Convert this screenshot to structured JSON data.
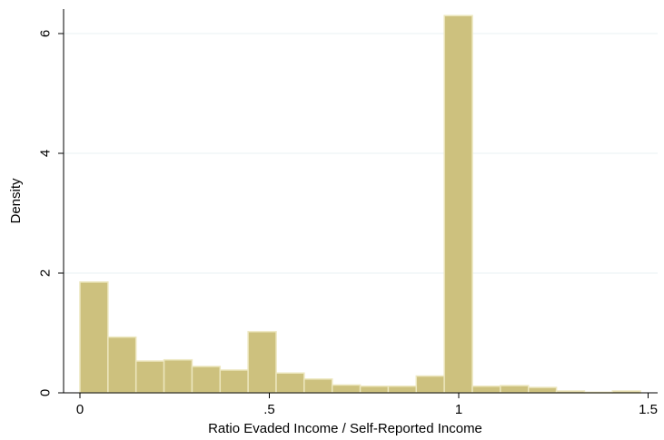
{
  "chart_data": {
    "type": "bar",
    "title": "",
    "xlabel": "Ratio Evaded Income / Self-Reported Income",
    "ylabel": "Density",
    "xlim": [
      -0.08,
      1.55
    ],
    "ylim": [
      0,
      6.45
    ],
    "xticks": [
      0,
      0.5,
      1,
      1.5
    ],
    "xtick_labels": [
      "0",
      ".5",
      "1",
      "1.5"
    ],
    "yticks": [
      0,
      2,
      4,
      6
    ],
    "ytick_labels": [
      "0",
      "2",
      "4",
      "6"
    ],
    "bin_width": 0.074,
    "bins": [
      {
        "x0": 0.0,
        "value": 1.85
      },
      {
        "x0": 0.074,
        "value": 0.93
      },
      {
        "x0": 0.148,
        "value": 0.53
      },
      {
        "x0": 0.222,
        "value": 0.55
      },
      {
        "x0": 0.296,
        "value": 0.44
      },
      {
        "x0": 0.37,
        "value": 0.38
      },
      {
        "x0": 0.444,
        "value": 1.02
      },
      {
        "x0": 0.518,
        "value": 0.33
      },
      {
        "x0": 0.592,
        "value": 0.23
      },
      {
        "x0": 0.666,
        "value": 0.13
      },
      {
        "x0": 0.74,
        "value": 0.11
      },
      {
        "x0": 0.814,
        "value": 0.11
      },
      {
        "x0": 0.888,
        "value": 0.28
      },
      {
        "x0": 0.962,
        "value": 6.3
      },
      {
        "x0": 1.036,
        "value": 0.11
      },
      {
        "x0": 1.11,
        "value": 0.12
      },
      {
        "x0": 1.184,
        "value": 0.09
      },
      {
        "x0": 1.258,
        "value": 0.03
      },
      {
        "x0": 1.332,
        "value": 0.01
      },
      {
        "x0": 1.406,
        "value": 0.03
      }
    ],
    "grid": true,
    "colors": {
      "bar_fill": "#cdc17e",
      "bar_stroke": "#ece6bd",
      "grid": "#eaf2f3",
      "axis": "#000000",
      "title": "#1a476f"
    }
  }
}
